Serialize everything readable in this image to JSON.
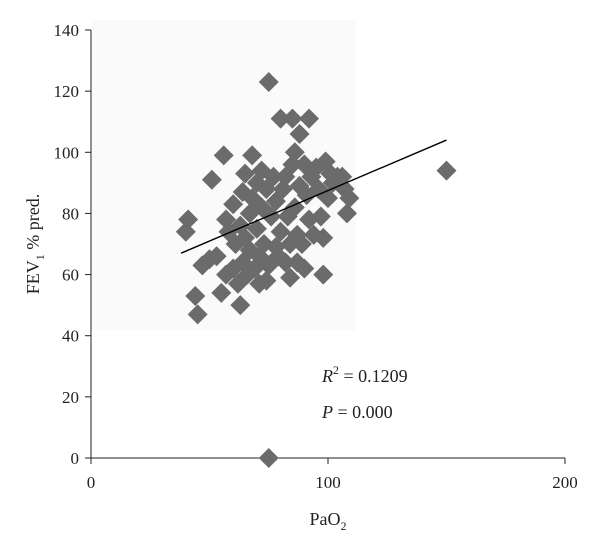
{
  "chart_data": {
    "type": "scatter",
    "xlabel": "PaO",
    "xlabel_sub": "2",
    "ylabel_pre": "FEV",
    "ylabel_sub": "1",
    "ylabel_post": " % pred.",
    "xlim": [
      0,
      200
    ],
    "ylim": [
      0,
      140
    ],
    "xticks": [
      0,
      100,
      200
    ],
    "yticks": [
      0,
      20,
      40,
      60,
      80,
      100,
      120,
      140
    ],
    "grid": false,
    "legend": "none",
    "marker_color": "#6b6b6b",
    "marker": "diamond",
    "annotations": {
      "r2_symbol": "R",
      "r2_sup": "2",
      "r2_value": " = 0.1209",
      "p_symbol": "P",
      "p_value": " = 0.000"
    },
    "trendline": {
      "x1": 38,
      "y1": 67,
      "x2": 150,
      "y2": 104,
      "color": "#000000"
    },
    "points": [
      [
        40,
        74
      ],
      [
        41,
        78
      ],
      [
        44,
        53
      ],
      [
        45,
        47
      ],
      [
        47,
        63
      ],
      [
        50,
        65
      ],
      [
        51,
        91
      ],
      [
        53,
        66
      ],
      [
        55,
        54
      ],
      [
        56,
        99
      ],
      [
        57,
        60
      ],
      [
        57,
        78
      ],
      [
        58,
        74
      ],
      [
        60,
        62
      ],
      [
        60,
        83
      ],
      [
        61,
        70
      ],
      [
        62,
        57
      ],
      [
        63,
        50
      ],
      [
        63,
        76
      ],
      [
        64,
        87
      ],
      [
        64,
        64
      ],
      [
        65,
        72
      ],
      [
        65,
        93
      ],
      [
        66,
        60
      ],
      [
        67,
        80
      ],
      [
        67,
        68
      ],
      [
        68,
        85
      ],
      [
        68,
        99
      ],
      [
        69,
        62
      ],
      [
        70,
        75
      ],
      [
        70,
        90
      ],
      [
        71,
        57
      ],
      [
        71,
        66
      ],
      [
        72,
        82
      ],
      [
        72,
        94
      ],
      [
        73,
        70
      ],
      [
        74,
        58
      ],
      [
        74,
        88
      ],
      [
        75,
        123
      ],
      [
        75,
        0
      ],
      [
        75,
        63
      ],
      [
        76,
        79
      ],
      [
        77,
        92
      ],
      [
        78,
        69
      ],
      [
        78,
        84
      ],
      [
        79,
        66
      ],
      [
        80,
        111
      ],
      [
        80,
        74
      ],
      [
        81,
        88
      ],
      [
        82,
        64
      ],
      [
        82,
        92
      ],
      [
        83,
        79
      ],
      [
        84,
        70
      ],
      [
        84,
        59
      ],
      [
        85,
        96
      ],
      [
        85,
        111
      ],
      [
        86,
        100
      ],
      [
        86,
        82
      ],
      [
        87,
        64
      ],
      [
        87,
        73
      ],
      [
        88,
        106
      ],
      [
        88,
        89
      ],
      [
        89,
        70
      ],
      [
        90,
        96
      ],
      [
        90,
        62
      ],
      [
        91,
        86
      ],
      [
        92,
        78
      ],
      [
        92,
        111
      ],
      [
        93,
        92
      ],
      [
        94,
        73
      ],
      [
        95,
        95
      ],
      [
        96,
        88
      ],
      [
        97,
        79
      ],
      [
        98,
        60
      ],
      [
        98,
        72
      ],
      [
        99,
        97
      ],
      [
        100,
        85
      ],
      [
        101,
        93
      ],
      [
        102,
        90
      ],
      [
        104,
        92
      ],
      [
        106,
        92
      ],
      [
        107,
        88
      ],
      [
        108,
        80
      ],
      [
        109,
        85
      ],
      [
        150,
        94
      ]
    ]
  }
}
